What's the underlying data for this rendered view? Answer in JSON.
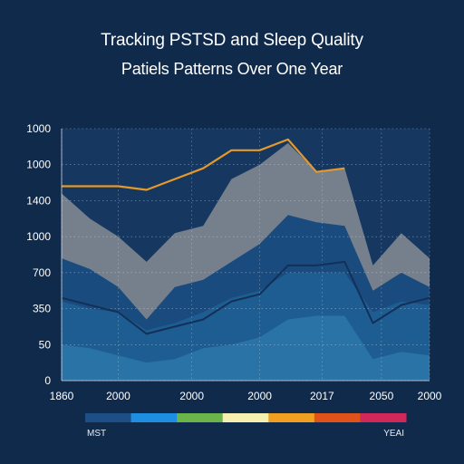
{
  "title": "Tracking PSTSD and Sleep Quality",
  "subtitle": "Patiels Patterns Over One Year",
  "colors": {
    "background": "#102a4c",
    "plot_background": "#16375f",
    "grid": "#d0d8e4",
    "highlight_line": "#e39a2b",
    "series_top_fill": "#7b848f"
  },
  "chart_data": {
    "type": "area",
    "title": "Tracking PSTSD and Sleep Quality",
    "subtitle": "Patiels Patterns Over One Year",
    "xlabel": "",
    "ylabel": "",
    "x_positions": [
      0,
      1,
      2,
      3,
      4,
      5,
      6,
      7,
      8,
      9,
      10,
      11,
      12,
      13
    ],
    "x_ticks": [
      {
        "pos": 0,
        "label": "1860"
      },
      {
        "pos": 2,
        "label": "2000"
      },
      {
        "pos": 4.6,
        "label": "2000"
      },
      {
        "pos": 7,
        "label": "2000"
      },
      {
        "pos": 9.2,
        "label": "2017"
      },
      {
        "pos": 11.3,
        "label": "2050"
      },
      {
        "pos": 13,
        "label": "2000"
      }
    ],
    "y_ticks": [
      {
        "level": 0,
        "label": "0"
      },
      {
        "level": 1,
        "label": "50"
      },
      {
        "level": 2,
        "label": "350"
      },
      {
        "level": 3,
        "label": "700"
      },
      {
        "level": 4,
        "label": "1000"
      },
      {
        "level": 5,
        "label": "1400"
      },
      {
        "level": 6,
        "label": "1000"
      },
      {
        "level": 7,
        "label": "1000"
      }
    ],
    "y_range": [
      0,
      7
    ],
    "grid": true,
    "series": [
      {
        "color": "#7b848f",
        "values": [
          5.2,
          4.5,
          4.0,
          3.3,
          4.1,
          4.3,
          5.6,
          6.0,
          6.6,
          5.8,
          5.9,
          3.2,
          4.1,
          3.4
        ]
      },
      {
        "color": "#1a4b7e",
        "values": [
          3.4,
          3.1,
          2.6,
          1.7,
          2.6,
          2.8,
          3.3,
          3.8,
          4.6,
          4.4,
          4.3,
          2.5,
          3.0,
          2.6
        ]
      },
      {
        "color": "#1e5d92",
        "values": [
          2.2,
          2.0,
          1.9,
          1.4,
          1.6,
          1.9,
          2.3,
          2.5,
          3.0,
          3.0,
          3.0,
          1.9,
          2.2,
          2.1
        ]
      },
      {
        "color": "#2a73a6",
        "values": [
          1.0,
          0.9,
          0.7,
          0.5,
          0.6,
          0.9,
          1.0,
          1.2,
          1.7,
          1.8,
          1.8,
          0.6,
          0.8,
          0.7
        ]
      }
    ],
    "line_series": [
      {
        "color": "#123058",
        "values": [
          2.3,
          2.1,
          1.9,
          1.3,
          1.5,
          1.7,
          2.2,
          2.4,
          3.2,
          3.2,
          3.3,
          1.6,
          2.1,
          2.3
        ]
      },
      {
        "color": "#e39a2b",
        "values": [
          5.4,
          5.4,
          5.4,
          5.3,
          5.6,
          5.9,
          6.4,
          6.4,
          6.7,
          5.8,
          5.9,
          null,
          null,
          null
        ]
      }
    ],
    "legend": {
      "placement": "bottom",
      "left_label": "MST",
      "right_label": "YEAI",
      "swatches": [
        "#1d4f86",
        "#1e8fe0",
        "#6ab44a",
        "#f5f0b0",
        "#f0a020",
        "#e0521a",
        "#d0285a"
      ]
    }
  }
}
